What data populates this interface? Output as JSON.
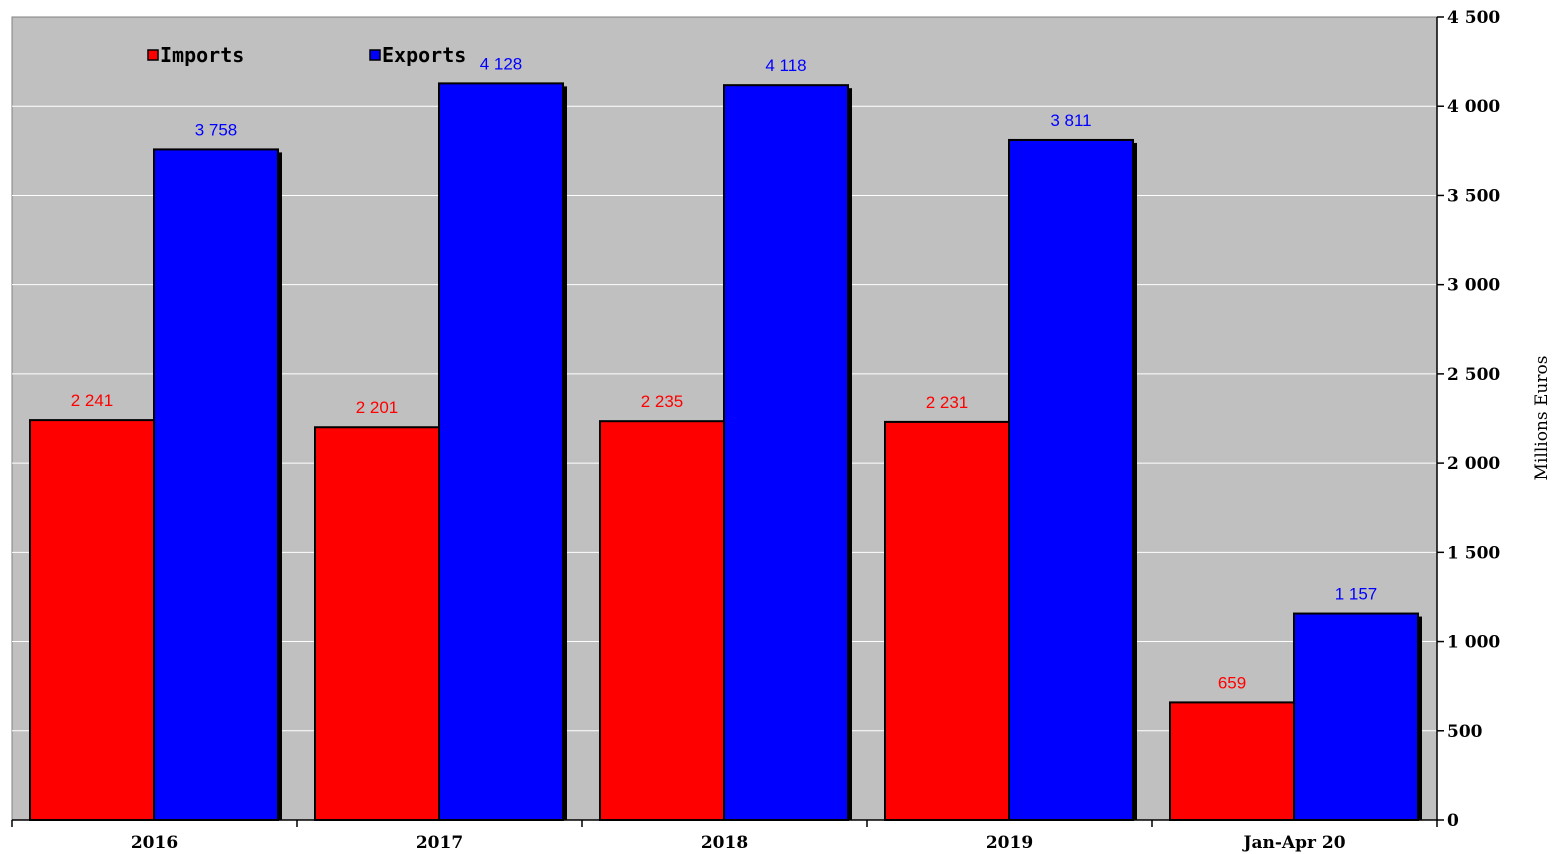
{
  "chart_data": {
    "type": "bar",
    "categories": [
      "2016",
      "2017",
      "2018",
      "2019",
      "Jan-Apr 20"
    ],
    "series": [
      {
        "name": "Imports",
        "color": "#ff0000",
        "values": [
          2241,
          2201,
          2235,
          2231,
          659
        ],
        "labels": [
          "2 241",
          "2 201",
          "2 235",
          "2 231",
          "659"
        ]
      },
      {
        "name": "Exports",
        "color": "#0000ff",
        "values": [
          3758,
          4128,
          4118,
          3811,
          1157
        ],
        "labels": [
          "3 758",
          "4 128",
          "4 118",
          "3 811",
          "1 157"
        ]
      }
    ],
    "ylabel": "Millions Euros",
    "ylim": [
      0,
      4500
    ],
    "yticks": [
      0,
      500,
      1000,
      1500,
      2000,
      2500,
      3000,
      3500,
      4000,
      4500
    ],
    "ytick_labels": [
      "0",
      "500",
      "1 000",
      "1 500",
      "2 000",
      "2 500",
      "3 000",
      "3 500",
      "4 000",
      "4 500"
    ],
    "y_axis_side": "right",
    "grid": true,
    "legend_position": "top-left",
    "plot_background": "#c0c0c0"
  }
}
